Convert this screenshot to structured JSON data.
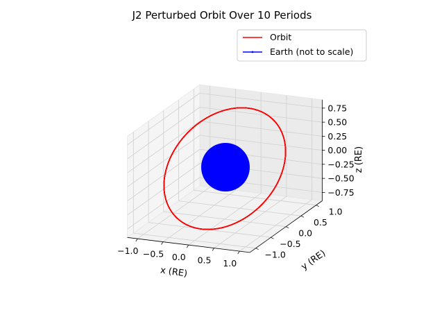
{
  "chart_data": {
    "type": "line",
    "projection": "3d",
    "title": "J2 Perturbed Orbit Over 10 Periods",
    "xlabel": "x (RE)",
    "ylabel": "y (RE)",
    "zlabel": "z (RE)",
    "xlim": [
      -1.2,
      1.2
    ],
    "ylim": [
      -1.2,
      1.2
    ],
    "zlim": [
      -0.9,
      0.9
    ],
    "x_ticks": [
      "−1.0",
      "−0.5",
      "0.0",
      "0.5",
      "1.0"
    ],
    "y_ticks": [
      "−1.0",
      "−0.5",
      "0.0",
      "0.5",
      "1.0"
    ],
    "z_ticks": [
      "−0.75",
      "−0.50",
      "−0.25",
      "0.00",
      "0.25",
      "0.50",
      "0.75"
    ],
    "grid": true,
    "legend_position": "top-right",
    "series": [
      {
        "name": "Orbit",
        "color": "#ff0000",
        "description_values": {
          "radius": 1.1,
          "inclination_deg": 45,
          "periods": 10
        }
      },
      {
        "name": "Earth (not to scale)",
        "color": "#0000ff",
        "marker": "filled-sphere",
        "center": [
          0,
          0,
          0
        ]
      }
    ]
  }
}
